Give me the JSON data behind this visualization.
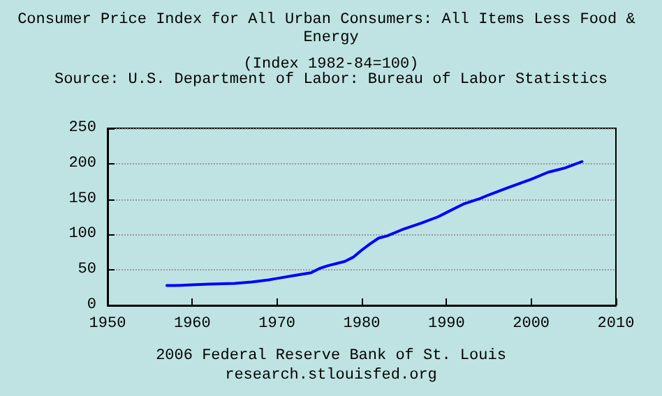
{
  "chart_data": {
    "type": "line",
    "title": "Consumer Price Index for All Urban Consumers: All Items Less Food & Energy",
    "subtitle": "(Index 1982-84=100)",
    "annotations": [
      "Source: U.S. Department of Labor: Bureau of Labor Statistics",
      "2006 Federal Reserve Bank of St. Louis",
      "research.stlouisfed.org"
    ],
    "x": [
      1957,
      1958,
      1960,
      1962,
      1965,
      1966,
      1967,
      1969,
      1970,
      1972,
      1974,
      1975,
      1976,
      1978,
      1979,
      1980,
      1981,
      1982,
      1983,
      1985,
      1987,
      1989,
      1990,
      1991,
      1992,
      1994,
      1995,
      1997,
      2000,
      2002,
      2003,
      2004,
      2006
    ],
    "series": [
      {
        "color": "#0000ff",
        "values": [
          28,
          28,
          29,
          30,
          31,
          32,
          33,
          36,
          38,
          42,
          46,
          52,
          56,
          62,
          68,
          78,
          87,
          95,
          98,
          108,
          116,
          125,
          131,
          137,
          143,
          151,
          156,
          165,
          178,
          188,
          191,
          194,
          203
        ]
      }
    ],
    "xlim": [
      1950,
      2010
    ],
    "xticks": [
      1950,
      1960,
      1970,
      1980,
      1990,
      2000,
      2010
    ],
    "ylim": [
      0,
      250
    ],
    "yticks": [
      0,
      50,
      100,
      150,
      200,
      250
    ],
    "grid": "y",
    "marker": "none",
    "line_style": "solid"
  }
}
